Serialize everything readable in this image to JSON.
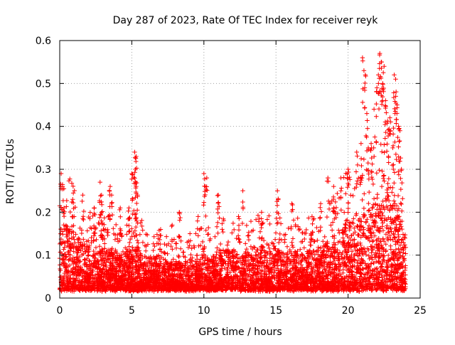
{
  "chart_data": {
    "type": "scatter",
    "title": "Day 287 of 2023, Rate Of TEC Index for receiver reyk",
    "xlabel": "GPS time / hours",
    "ylabel": "ROTI / TECUs",
    "xlim": [
      0,
      25
    ],
    "ylim": [
      0,
      0.6
    ],
    "xticks": [
      "0",
      "5",
      "10",
      "15",
      "20",
      "25"
    ],
    "yticks": [
      "0",
      "0.1",
      "0.2",
      "0.3",
      "0.4",
      "0.5",
      "0.6"
    ],
    "grid": true,
    "legend": "none",
    "marker": "+",
    "color": "#ff0000",
    "x_range_of_data": [
      0,
      24
    ],
    "envelope": {
      "hours": [
        0,
        0.5,
        1,
        1.5,
        2,
        2.5,
        3,
        3.5,
        4,
        4.5,
        5,
        5.5,
        6,
        6.5,
        7,
        7.5,
        8,
        8.5,
        9,
        9.5,
        10,
        10.5,
        11,
        11.5,
        12,
        12.5,
        13,
        13.5,
        14,
        14.5,
        15,
        15.5,
        16,
        16.5,
        17,
        17.5,
        18,
        18.5,
        19,
        19.5,
        20,
        20.5,
        21,
        21.5,
        22,
        22.5,
        23,
        23.5,
        24
      ],
      "typical_upper": [
        0.16,
        0.18,
        0.15,
        0.13,
        0.12,
        0.11,
        0.12,
        0.11,
        0.1,
        0.1,
        0.12,
        0.12,
        0.09,
        0.09,
        0.1,
        0.09,
        0.08,
        0.08,
        0.09,
        0.09,
        0.1,
        0.1,
        0.11,
        0.11,
        0.11,
        0.1,
        0.11,
        0.11,
        0.12,
        0.12,
        0.12,
        0.11,
        0.11,
        0.11,
        0.11,
        0.11,
        0.12,
        0.13,
        0.14,
        0.16,
        0.18,
        0.19,
        0.2,
        0.2,
        0.22,
        0.24,
        0.25,
        0.22,
        0.14
      ],
      "floor": 0.02
    },
    "spikes": [
      {
        "x": 0.1,
        "y": 0.29
      },
      {
        "x": 0.2,
        "y": 0.26
      },
      {
        "x": 0.3,
        "y": 0.21
      },
      {
        "x": 0.9,
        "y": 0.23
      },
      {
        "x": 1.6,
        "y": 0.24
      },
      {
        "x": 2.4,
        "y": 0.21
      },
      {
        "x": 2.8,
        "y": 0.27
      },
      {
        "x": 2.9,
        "y": 0.24
      },
      {
        "x": 3.5,
        "y": 0.26
      },
      {
        "x": 3.6,
        "y": 0.24
      },
      {
        "x": 4.2,
        "y": 0.21
      },
      {
        "x": 4.8,
        "y": 0.21
      },
      {
        "x": 5.0,
        "y": 0.29
      },
      {
        "x": 5.2,
        "y": 0.34
      },
      {
        "x": 5.3,
        "y": 0.33
      },
      {
        "x": 5.25,
        "y": 0.3
      },
      {
        "x": 5.3,
        "y": 0.26
      },
      {
        "x": 5.4,
        "y": 0.24
      },
      {
        "x": 7.0,
        "y": 0.16
      },
      {
        "x": 7.8,
        "y": 0.17
      },
      {
        "x": 8.3,
        "y": 0.2
      },
      {
        "x": 9.6,
        "y": 0.19
      },
      {
        "x": 10.0,
        "y": 0.29
      },
      {
        "x": 10.1,
        "y": 0.26
      },
      {
        "x": 10.2,
        "y": 0.28
      },
      {
        "x": 11.0,
        "y": 0.24
      },
      {
        "x": 12.4,
        "y": 0.19
      },
      {
        "x": 12.7,
        "y": 0.25
      },
      {
        "x": 14.0,
        "y": 0.2
      },
      {
        "x": 15.1,
        "y": 0.25
      },
      {
        "x": 16.1,
        "y": 0.22
      },
      {
        "x": 17.5,
        "y": 0.19
      },
      {
        "x": 18.1,
        "y": 0.22
      },
      {
        "x": 18.6,
        "y": 0.28
      },
      {
        "x": 19.0,
        "y": 0.26
      },
      {
        "x": 19.5,
        "y": 0.28
      },
      {
        "x": 20.0,
        "y": 0.3
      },
      {
        "x": 20.6,
        "y": 0.34
      },
      {
        "x": 20.9,
        "y": 0.36
      },
      {
        "x": 21.0,
        "y": 0.56
      },
      {
        "x": 21.1,
        "y": 0.53
      },
      {
        "x": 21.2,
        "y": 0.52
      },
      {
        "x": 21.3,
        "y": 0.43
      },
      {
        "x": 21.4,
        "y": 0.35
      },
      {
        "x": 21.6,
        "y": 0.36
      },
      {
        "x": 21.8,
        "y": 0.44
      },
      {
        "x": 22.0,
        "y": 0.49
      },
      {
        "x": 22.1,
        "y": 0.52
      },
      {
        "x": 22.2,
        "y": 0.57
      },
      {
        "x": 22.3,
        "y": 0.55
      },
      {
        "x": 22.4,
        "y": 0.5
      },
      {
        "x": 22.5,
        "y": 0.54
      },
      {
        "x": 22.6,
        "y": 0.46
      },
      {
        "x": 22.9,
        "y": 0.42
      },
      {
        "x": 23.2,
        "y": 0.52
      },
      {
        "x": 23.3,
        "y": 0.51
      },
      {
        "x": 23.4,
        "y": 0.45
      },
      {
        "x": 23.5,
        "y": 0.4
      },
      {
        "x": 23.6,
        "y": 0.39
      },
      {
        "x": 23.7,
        "y": 0.3
      },
      {
        "x": 23.1,
        "y": 0.35
      },
      {
        "x": 22.8,
        "y": 0.33
      }
    ]
  }
}
